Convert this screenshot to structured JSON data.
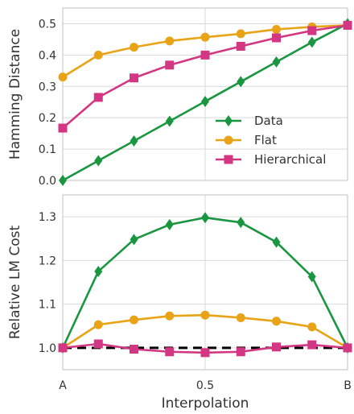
{
  "chart_data": [
    {
      "type": "line",
      "ylabel": "Hamming Distance",
      "xlabel": "",
      "x": [
        0,
        0.125,
        0.25,
        0.375,
        0.5,
        0.625,
        0.75,
        0.875,
        1.0
      ],
      "xlim": [
        0,
        1
      ],
      "ylim": [
        0,
        0.55
      ],
      "yticks": [
        0.0,
        0.1,
        0.2,
        0.3,
        0.4,
        0.5
      ],
      "ytick_labels": [
        "0.0",
        "0.1",
        "0.2",
        "0.3",
        "0.4",
        "0.5"
      ],
      "grid": true,
      "legend": "bottom-right",
      "series": [
        {
          "name": "Data",
          "color": "#1a9641",
          "marker": "diamond",
          "values": [
            0.0,
            0.063,
            0.126,
            0.189,
            0.252,
            0.315,
            0.378,
            0.441,
            0.5
          ]
        },
        {
          "name": "Flat",
          "color": "#e8a317",
          "marker": "circle",
          "values": [
            0.33,
            0.4,
            0.425,
            0.445,
            0.457,
            0.468,
            0.482,
            0.49,
            0.495
          ]
        },
        {
          "name": "Hierarchical",
          "color": "#d33682",
          "marker": "square",
          "values": [
            0.167,
            0.265,
            0.327,
            0.368,
            0.4,
            0.428,
            0.455,
            0.478,
            0.495
          ]
        }
      ]
    },
    {
      "type": "line",
      "ylabel": "Relative LM Cost",
      "xlabel": "Interpolation",
      "x": [
        0,
        0.125,
        0.25,
        0.375,
        0.5,
        0.625,
        0.75,
        0.875,
        1.0
      ],
      "xlim": [
        0,
        1
      ],
      "ylim": [
        0.95,
        1.35
      ],
      "xticks": [
        0,
        0.5,
        1
      ],
      "xtick_labels": [
        "A",
        "0.5",
        "B"
      ],
      "yticks": [
        1.0,
        1.1,
        1.2,
        1.3
      ],
      "ytick_labels": [
        "1.0",
        "1.1",
        "1.2",
        "1.3"
      ],
      "grid": true,
      "reference_line": {
        "y": 1.0,
        "color": "#000000",
        "style": "dashed"
      },
      "series": [
        {
          "name": "Data",
          "color": "#1a9641",
          "marker": "diamond",
          "values": [
            1.0,
            1.175,
            1.248,
            1.282,
            1.298,
            1.287,
            1.242,
            1.163,
            1.0
          ]
        },
        {
          "name": "Flat",
          "color": "#e8a317",
          "marker": "circle",
          "values": [
            1.0,
            1.053,
            1.064,
            1.073,
            1.075,
            1.069,
            1.061,
            1.048,
            1.0
          ]
        },
        {
          "name": "Hierarchical",
          "color": "#d33682",
          "marker": "square",
          "values": [
            1.0,
            1.009,
            0.997,
            0.991,
            0.989,
            0.991,
            1.002,
            1.007,
            1.0
          ]
        }
      ]
    }
  ]
}
